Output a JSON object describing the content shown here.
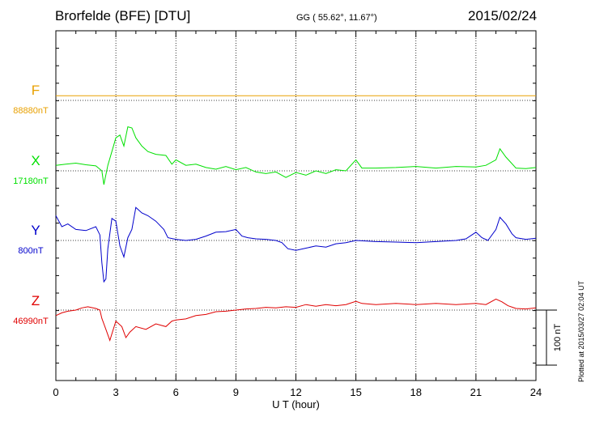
{
  "header": {
    "title": "Brorfelde (BFE)  [DTU]",
    "coords": "GG ( 55.62°,  11.67°)",
    "date": "2015/02/24"
  },
  "footer": {
    "plotted": "Plotted at 2015/03/27 02:04 UT"
  },
  "colors": {
    "F": "#e8a000",
    "X": "#00e000",
    "Y": "#0000cc",
    "Z": "#e00000",
    "axis": "#000000",
    "grid": "#000000"
  },
  "chart_data": {
    "type": "line",
    "xlabel": "U T (hour)",
    "xlim": [
      0,
      24
    ],
    "x_ticks": [
      "0",
      "3",
      "6",
      "9",
      "12",
      "15",
      "18",
      "21",
      "24"
    ],
    "grid": "dotted",
    "scale_bar": {
      "label": "100 nT",
      "value_nT": 100
    },
    "series": [
      {
        "name": "F",
        "baseline_label": "88880nT",
        "points": [
          [
            0,
            105
          ],
          [
            24,
            105
          ]
        ]
      },
      {
        "name": "X",
        "baseline_label": "17180nT",
        "points": [
          [
            0,
            10
          ],
          [
            0.5,
            12
          ],
          [
            1,
            14
          ],
          [
            1.5,
            11
          ],
          [
            2,
            9
          ],
          [
            2.3,
            0
          ],
          [
            2.4,
            -25
          ],
          [
            2.6,
            10
          ],
          [
            2.8,
            35
          ],
          [
            3,
            60
          ],
          [
            3.2,
            65
          ],
          [
            3.4,
            45
          ],
          [
            3.6,
            80
          ],
          [
            3.8,
            78
          ],
          [
            4,
            60
          ],
          [
            4.3,
            45
          ],
          [
            4.6,
            35
          ],
          [
            5,
            30
          ],
          [
            5.5,
            28
          ],
          [
            5.8,
            12
          ],
          [
            6,
            20
          ],
          [
            6.5,
            10
          ],
          [
            7,
            12
          ],
          [
            7.5,
            6
          ],
          [
            8,
            3
          ],
          [
            8.5,
            8
          ],
          [
            9,
            2
          ],
          [
            9.5,
            6
          ],
          [
            10,
            -2
          ],
          [
            10.5,
            -5
          ],
          [
            11,
            -2
          ],
          [
            11.5,
            -12
          ],
          [
            12,
            -3
          ],
          [
            12.5,
            -8
          ],
          [
            13,
            0
          ],
          [
            13.5,
            -5
          ],
          [
            14,
            2
          ],
          [
            14.5,
            0
          ],
          [
            15,
            20
          ],
          [
            15.3,
            5
          ],
          [
            16,
            5
          ],
          [
            17,
            6
          ],
          [
            18,
            8
          ],
          [
            19,
            5
          ],
          [
            20,
            8
          ],
          [
            21,
            7
          ],
          [
            21.5,
            10
          ],
          [
            22,
            20
          ],
          [
            22.2,
            40
          ],
          [
            22.5,
            25
          ],
          [
            23,
            5
          ],
          [
            23.5,
            4
          ],
          [
            24,
            6
          ]
        ]
      },
      {
        "name": "Y",
        "baseline_label": "800nT",
        "points": [
          [
            0,
            45
          ],
          [
            0.3,
            25
          ],
          [
            0.6,
            30
          ],
          [
            1,
            20
          ],
          [
            1.5,
            18
          ],
          [
            2,
            25
          ],
          [
            2.2,
            10
          ],
          [
            2.3,
            -40
          ],
          [
            2.4,
            -75
          ],
          [
            2.5,
            -70
          ],
          [
            2.6,
            -15
          ],
          [
            2.8,
            40
          ],
          [
            3,
            35
          ],
          [
            3.2,
            -10
          ],
          [
            3.4,
            -30
          ],
          [
            3.6,
            5
          ],
          [
            3.8,
            20
          ],
          [
            4,
            60
          ],
          [
            4.3,
            50
          ],
          [
            4.6,
            45
          ],
          [
            5,
            35
          ],
          [
            5.4,
            20
          ],
          [
            5.6,
            5
          ],
          [
            6,
            2
          ],
          [
            6.5,
            0
          ],
          [
            7,
            2
          ],
          [
            7.5,
            8
          ],
          [
            8,
            15
          ],
          [
            8.5,
            16
          ],
          [
            9,
            20
          ],
          [
            9.3,
            8
          ],
          [
            9.6,
            5
          ],
          [
            10,
            3
          ],
          [
            10.5,
            2
          ],
          [
            11,
            0
          ],
          [
            11.3,
            -4
          ],
          [
            11.6,
            -15
          ],
          [
            12,
            -18
          ],
          [
            12.5,
            -14
          ],
          [
            13,
            -10
          ],
          [
            13.5,
            -12
          ],
          [
            14,
            -6
          ],
          [
            14.5,
            -4
          ],
          [
            15,
            0
          ],
          [
            16,
            -2
          ],
          [
            17,
            -3
          ],
          [
            18,
            -4
          ],
          [
            19,
            -2
          ],
          [
            20,
            0
          ],
          [
            20.5,
            3
          ],
          [
            21,
            15
          ],
          [
            21.3,
            5
          ],
          [
            21.6,
            0
          ],
          [
            22,
            20
          ],
          [
            22.2,
            42
          ],
          [
            22.5,
            30
          ],
          [
            22.8,
            12
          ],
          [
            23,
            5
          ],
          [
            23.5,
            2
          ],
          [
            24,
            4
          ]
        ]
      },
      {
        "name": "Z",
        "baseline_label": "46990nT",
        "points": [
          [
            0,
            -10
          ],
          [
            0.3,
            -5
          ],
          [
            0.6,
            -2
          ],
          [
            1,
            0
          ],
          [
            1.3,
            4
          ],
          [
            1.6,
            6
          ],
          [
            2,
            3
          ],
          [
            2.2,
            0
          ],
          [
            2.3,
            -15
          ],
          [
            2.5,
            -35
          ],
          [
            2.7,
            -55
          ],
          [
            3,
            -20
          ],
          [
            3.3,
            -30
          ],
          [
            3.5,
            -50
          ],
          [
            3.7,
            -40
          ],
          [
            4,
            -30
          ],
          [
            4.5,
            -35
          ],
          [
            5,
            -25
          ],
          [
            5.5,
            -30
          ],
          [
            5.8,
            -20
          ],
          [
            6,
            -18
          ],
          [
            6.5,
            -16
          ],
          [
            7,
            -10
          ],
          [
            7.5,
            -8
          ],
          [
            8,
            -3
          ],
          [
            8.5,
            -2
          ],
          [
            9,
            0
          ],
          [
            9.5,
            2
          ],
          [
            10,
            3
          ],
          [
            10.5,
            5
          ],
          [
            11,
            4
          ],
          [
            11.5,
            6
          ],
          [
            12,
            5
          ],
          [
            12.5,
            10
          ],
          [
            13,
            7
          ],
          [
            13.5,
            10
          ],
          [
            14,
            8
          ],
          [
            14.5,
            10
          ],
          [
            15,
            16
          ],
          [
            15.3,
            12
          ],
          [
            16,
            10
          ],
          [
            17,
            12
          ],
          [
            18,
            10
          ],
          [
            19,
            12
          ],
          [
            20,
            10
          ],
          [
            21,
            12
          ],
          [
            21.5,
            10
          ],
          [
            22,
            20
          ],
          [
            22.3,
            15
          ],
          [
            22.6,
            8
          ],
          [
            23,
            3
          ],
          [
            23.5,
            2
          ],
          [
            24,
            4
          ]
        ]
      }
    ]
  }
}
